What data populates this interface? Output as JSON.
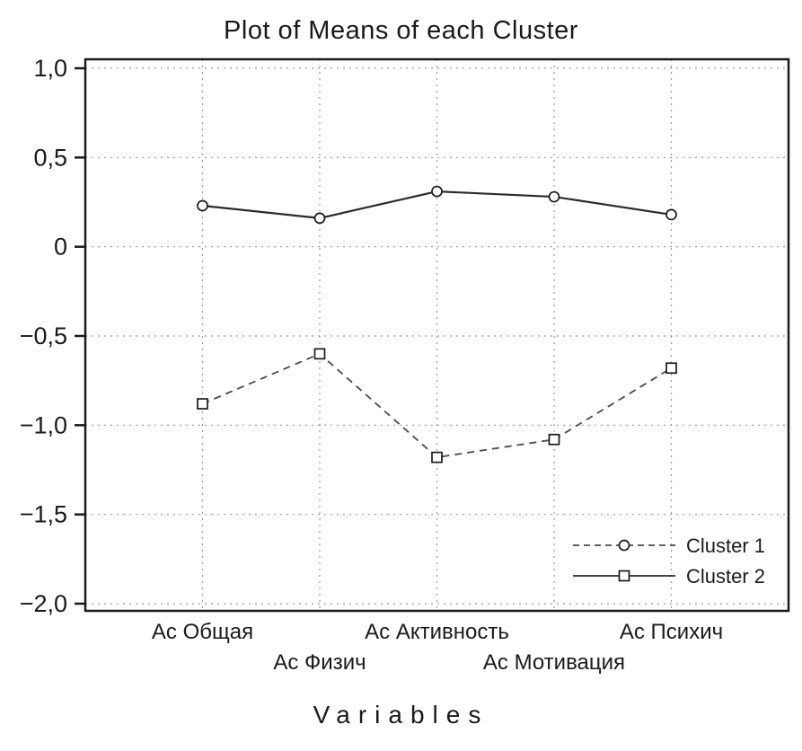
{
  "chart_data": {
    "type": "line",
    "title": "Plot of Means of each Cluster",
    "xlabel": "Variables",
    "categories": [
      "Ас Общая",
      "Ас Физич",
      "Ас Активность",
      "Ас Мотивация",
      "Ас Психич"
    ],
    "x_label_rows": [
      0,
      1,
      0,
      1,
      0
    ],
    "series": [
      {
        "name": "Cluster 1",
        "marker": "circle",
        "plot_linestyle": "solid",
        "legend_linestyle": "dashed",
        "values": [
          0.23,
          0.16,
          0.31,
          0.28,
          0.18
        ]
      },
      {
        "name": "Cluster 2",
        "marker": "square",
        "plot_linestyle": "dashed",
        "legend_linestyle": "solid",
        "values": [
          -0.88,
          -0.6,
          -1.18,
          -1.08,
          -0.68
        ]
      }
    ],
    "ylim": [
      -2.0,
      1.0
    ],
    "yticks": [
      {
        "value": 1.0,
        "label": "1,0"
      },
      {
        "value": 0.5,
        "label": "0,5"
      },
      {
        "value": 0.0,
        "label": "0"
      },
      {
        "value": -0.5,
        "label": "−0,5"
      },
      {
        "value": -1.0,
        "label": "−1,0"
      },
      {
        "value": -1.5,
        "label": "−1,5"
      },
      {
        "value": -2.0,
        "label": "−2,0"
      }
    ],
    "grid": "dotted, horizontal and vertical",
    "legend_position": "bottom-right inside plot",
    "colors": {
      "line_solid": "#2b2b2b",
      "line_dashed": "#4a4a4a",
      "marker_fill": "#ffffff",
      "marker_stroke": "#1a1a1a",
      "grid": "#9a9a9a",
      "frame": "#1a1a1a",
      "text": "#1a1a1a",
      "background": "#ffffff"
    }
  }
}
